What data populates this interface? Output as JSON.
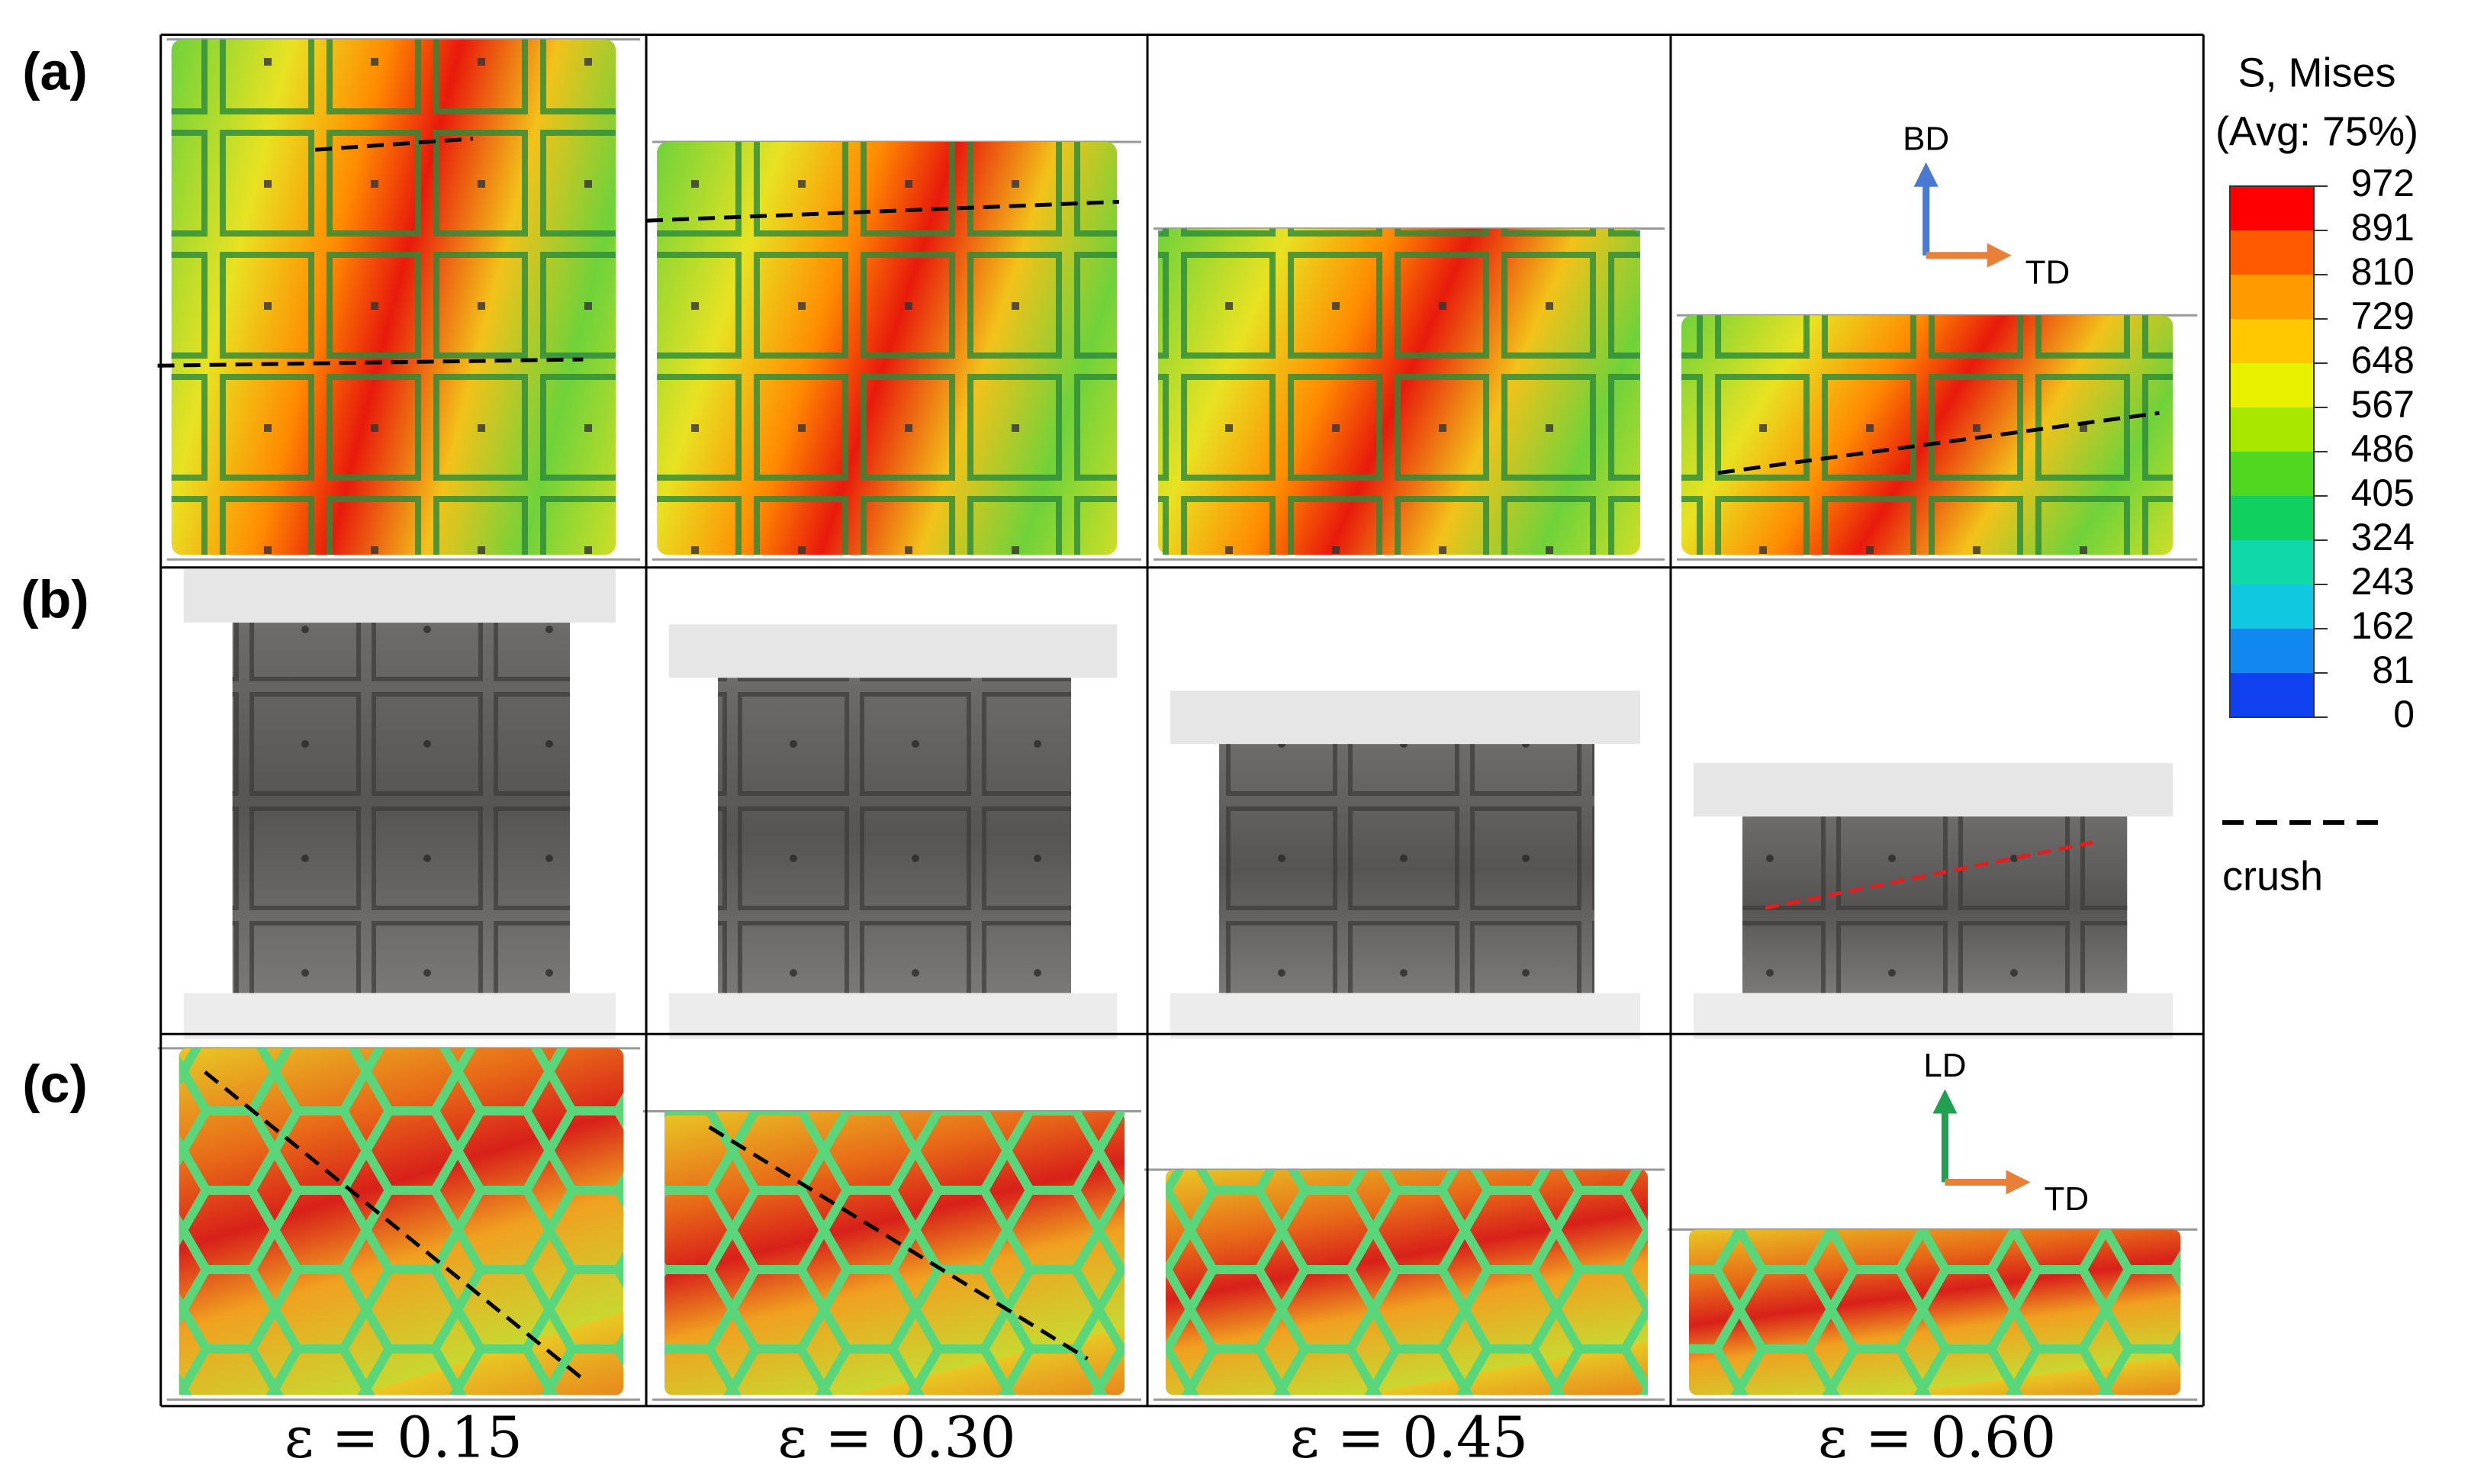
{
  "row_labels": [
    "(a)",
    "(b)",
    "(c)"
  ],
  "strain_labels": [
    "ε = 0.15",
    "ε = 0.30",
    "ε = 0.45",
    "ε = 0.60"
  ],
  "colorbar": {
    "title": "S, Mises",
    "subtitle": "(Avg: 75%)",
    "ticks": [
      972,
      891,
      810,
      729,
      648,
      567,
      486,
      405,
      324,
      243,
      162,
      81,
      0
    ]
  },
  "legend": {
    "label": "crush"
  },
  "axes_a": {
    "vertical": "BD",
    "horizontal": "TD"
  },
  "axes_c": {
    "vertical": "LD",
    "horizontal": "TD"
  }
}
